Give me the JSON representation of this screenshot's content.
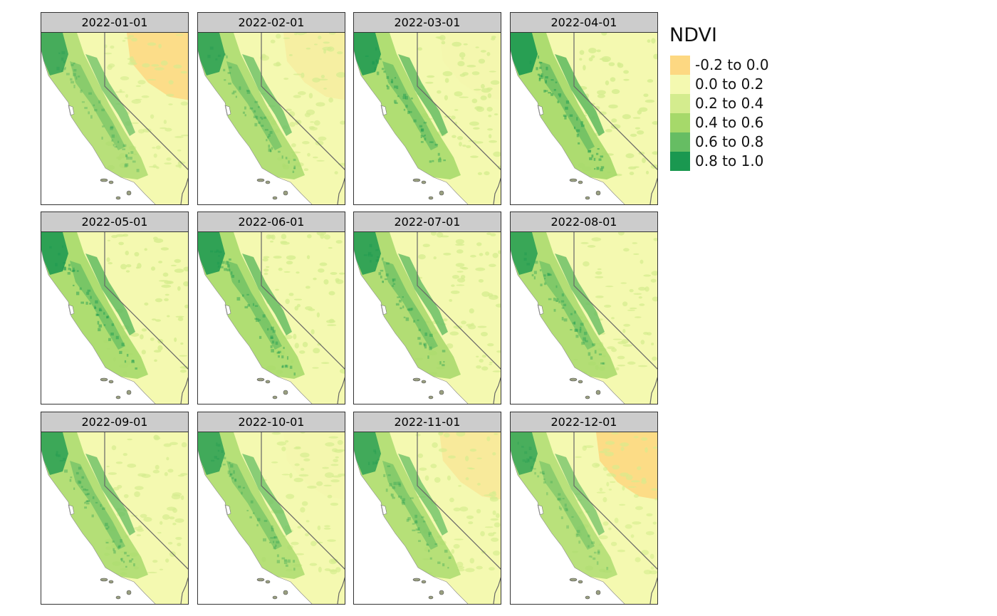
{
  "legend": {
    "title": "NDVI",
    "classes": [
      {
        "label": "-0.2 to 0.0",
        "color": "#fdd882"
      },
      {
        "label": "0.0 to 0.2",
        "color": "#f4f9b0"
      },
      {
        "label": "0.2 to 0.4",
        "color": "#d4ec8e"
      },
      {
        "label": "0.4 to 0.6",
        "color": "#a6d96a"
      },
      {
        "label": "0.6 to 0.8",
        "color": "#66bd63"
      },
      {
        "label": "0.8 to 1.0",
        "color": "#1a9850"
      }
    ]
  },
  "panels": [
    {
      "date": "2022-01-01",
      "veg": 0.45,
      "dry": 0.85
    },
    {
      "date": "2022-02-01",
      "veg": 0.55,
      "dry": 0.3
    },
    {
      "date": "2022-03-01",
      "veg": 0.7,
      "dry": 0.05
    },
    {
      "date": "2022-04-01",
      "veg": 0.8,
      "dry": 0.0
    },
    {
      "date": "2022-05-01",
      "veg": 0.75,
      "dry": 0.0
    },
    {
      "date": "2022-06-01",
      "veg": 0.7,
      "dry": 0.0
    },
    {
      "date": "2022-07-01",
      "veg": 0.65,
      "dry": 0.0
    },
    {
      "date": "2022-08-01",
      "veg": 0.6,
      "dry": 0.0
    },
    {
      "date": "2022-09-01",
      "veg": 0.55,
      "dry": 0.0
    },
    {
      "date": "2022-10-01",
      "veg": 0.5,
      "dry": 0.05
    },
    {
      "date": "2022-11-01",
      "veg": 0.5,
      "dry": 0.45
    },
    {
      "date": "2022-12-01",
      "veg": 0.4,
      "dry": 0.9
    }
  ]
}
